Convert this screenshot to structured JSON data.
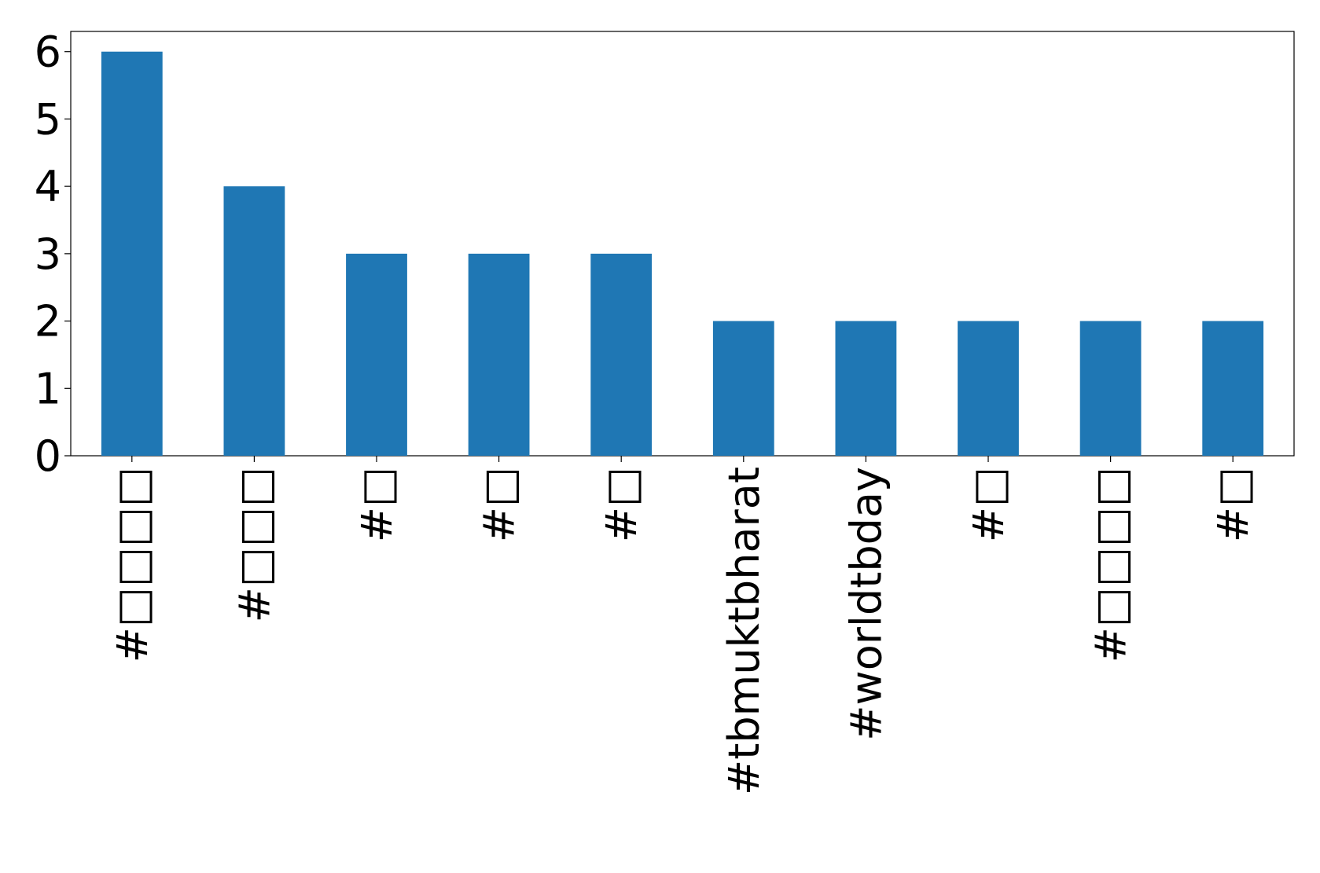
{
  "chart_data": {
    "type": "bar",
    "categories": [
      "#□□□□",
      "#□□□",
      "#□",
      "#□",
      "#□",
      "#tbmuktbharat",
      "#worldtbday",
      "#□",
      "#□□□□",
      "#□"
    ],
    "values": [
      6,
      4,
      3,
      3,
      3,
      2,
      2,
      2,
      2,
      2
    ],
    "color": "#1f77b4",
    "ylim": [
      0,
      6.3
    ],
    "yticks": [
      0,
      1,
      2,
      3,
      4,
      5,
      6
    ],
    "grid": false
  }
}
